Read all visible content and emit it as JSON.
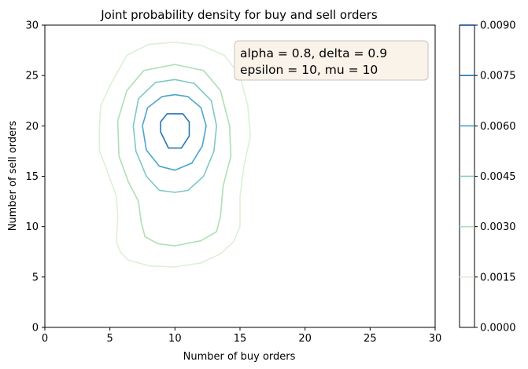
{
  "chart_data": {
    "type": "contour",
    "title": "Joint probability density for buy and sell orders",
    "xlabel": "Number of buy orders",
    "ylabel": "Number of sell orders",
    "xlim": [
      0,
      30
    ],
    "ylim": [
      0,
      30
    ],
    "x_ticks": [
      0,
      5,
      10,
      15,
      20,
      25,
      30
    ],
    "y_ticks": [
      0,
      5,
      10,
      15,
      20,
      25,
      30
    ],
    "grid": false,
    "annotation": {
      "line1": "alpha = 0.8, delta = 0.9",
      "line2": "epsilon = 10, mu = 10",
      "placement": "top-center"
    },
    "colorbar": {
      "levels": [
        0.0,
        0.0015,
        0.003,
        0.0045,
        0.006,
        0.0075,
        0.009
      ],
      "tick_labels": [
        "0.0000",
        "0.0015",
        "0.0030",
        "0.0045",
        "0.0060",
        "0.0075",
        "0.0090"
      ],
      "colors": [
        "#ffffff",
        "#dcf0d6",
        "#aedfb5",
        "#7dc8c5",
        "#4da4cc",
        "#2478b4",
        "#084185"
      ]
    },
    "series": [
      {
        "level": 0.0015,
        "color": "#dcf0d6",
        "contour": [
          [
            5,
            24
          ],
          [
            6.3,
            27
          ],
          [
            8,
            28.1
          ],
          [
            10,
            28.3
          ],
          [
            12,
            28
          ],
          [
            13.8,
            27
          ],
          [
            15,
            25
          ],
          [
            15.6,
            22
          ],
          [
            15.8,
            19
          ],
          [
            15.3,
            16
          ],
          [
            15,
            13
          ],
          [
            15,
            10
          ],
          [
            14.5,
            8.5
          ],
          [
            13.5,
            7.3
          ],
          [
            12,
            6.4
          ],
          [
            10,
            6
          ],
          [
            8,
            6.1
          ],
          [
            6.4,
            6.7
          ],
          [
            5.8,
            7.5
          ],
          [
            5.5,
            8.5
          ],
          [
            5.6,
            11
          ],
          [
            5.5,
            13
          ],
          [
            4.8,
            15.5
          ],
          [
            4.2,
            17.5
          ],
          [
            4.2,
            20
          ],
          [
            4.3,
            22
          ],
          [
            5,
            24
          ]
        ]
      },
      {
        "level": 0.003,
        "color": "#aedfb5",
        "contour": [
          [
            6.3,
            23.5
          ],
          [
            7.6,
            25.5
          ],
          [
            10,
            26.1
          ],
          [
            12.2,
            25.5
          ],
          [
            13.5,
            23.5
          ],
          [
            14.2,
            20
          ],
          [
            14.3,
            17
          ],
          [
            13.7,
            14
          ],
          [
            13.5,
            11
          ],
          [
            13.2,
            9.5
          ],
          [
            12,
            8.6
          ],
          [
            10,
            8.1
          ],
          [
            8.7,
            8.3
          ],
          [
            7.7,
            9
          ],
          [
            7.4,
            10.5
          ],
          [
            7.2,
            12.5
          ],
          [
            6.4,
            14.5
          ],
          [
            5.7,
            17
          ],
          [
            5.6,
            20.5
          ],
          [
            6.3,
            23.5
          ]
        ]
      },
      {
        "level": 0.0045,
        "color": "#7dc8c5",
        "contour": [
          [
            6.8,
            20
          ],
          [
            7.2,
            22.7
          ],
          [
            8.5,
            24.3
          ],
          [
            10,
            24.6
          ],
          [
            11.5,
            24.2
          ],
          [
            12.8,
            22.5
          ],
          [
            13.2,
            20
          ],
          [
            13,
            17.5
          ],
          [
            12.2,
            15
          ],
          [
            11,
            13.6
          ],
          [
            10,
            13.4
          ],
          [
            8.8,
            13.6
          ],
          [
            7.8,
            15
          ],
          [
            7,
            17.5
          ],
          [
            6.8,
            20
          ]
        ]
      },
      {
        "level": 0.006,
        "color": "#4da4cc",
        "contour": [
          [
            7.5,
            20
          ],
          [
            7.9,
            21.8
          ],
          [
            9,
            22.9
          ],
          [
            10,
            23.1
          ],
          [
            11,
            22.9
          ],
          [
            12,
            21.8
          ],
          [
            12.4,
            20
          ],
          [
            12.1,
            18
          ],
          [
            11.3,
            16.3
          ],
          [
            10,
            15.6
          ],
          [
            8.8,
            16
          ],
          [
            7.8,
            17.6
          ],
          [
            7.5,
            20
          ]
        ]
      },
      {
        "level": 0.0075,
        "color": "#2478b4",
        "contour": [
          [
            8.9,
            19.4
          ],
          [
            8.9,
            20.4
          ],
          [
            9.4,
            21.2
          ],
          [
            10.6,
            21.2
          ],
          [
            11.1,
            20.4
          ],
          [
            11.1,
            19
          ],
          [
            10.5,
            17.8
          ],
          [
            9.5,
            17.8
          ],
          [
            8.9,
            19.4
          ]
        ]
      }
    ]
  }
}
